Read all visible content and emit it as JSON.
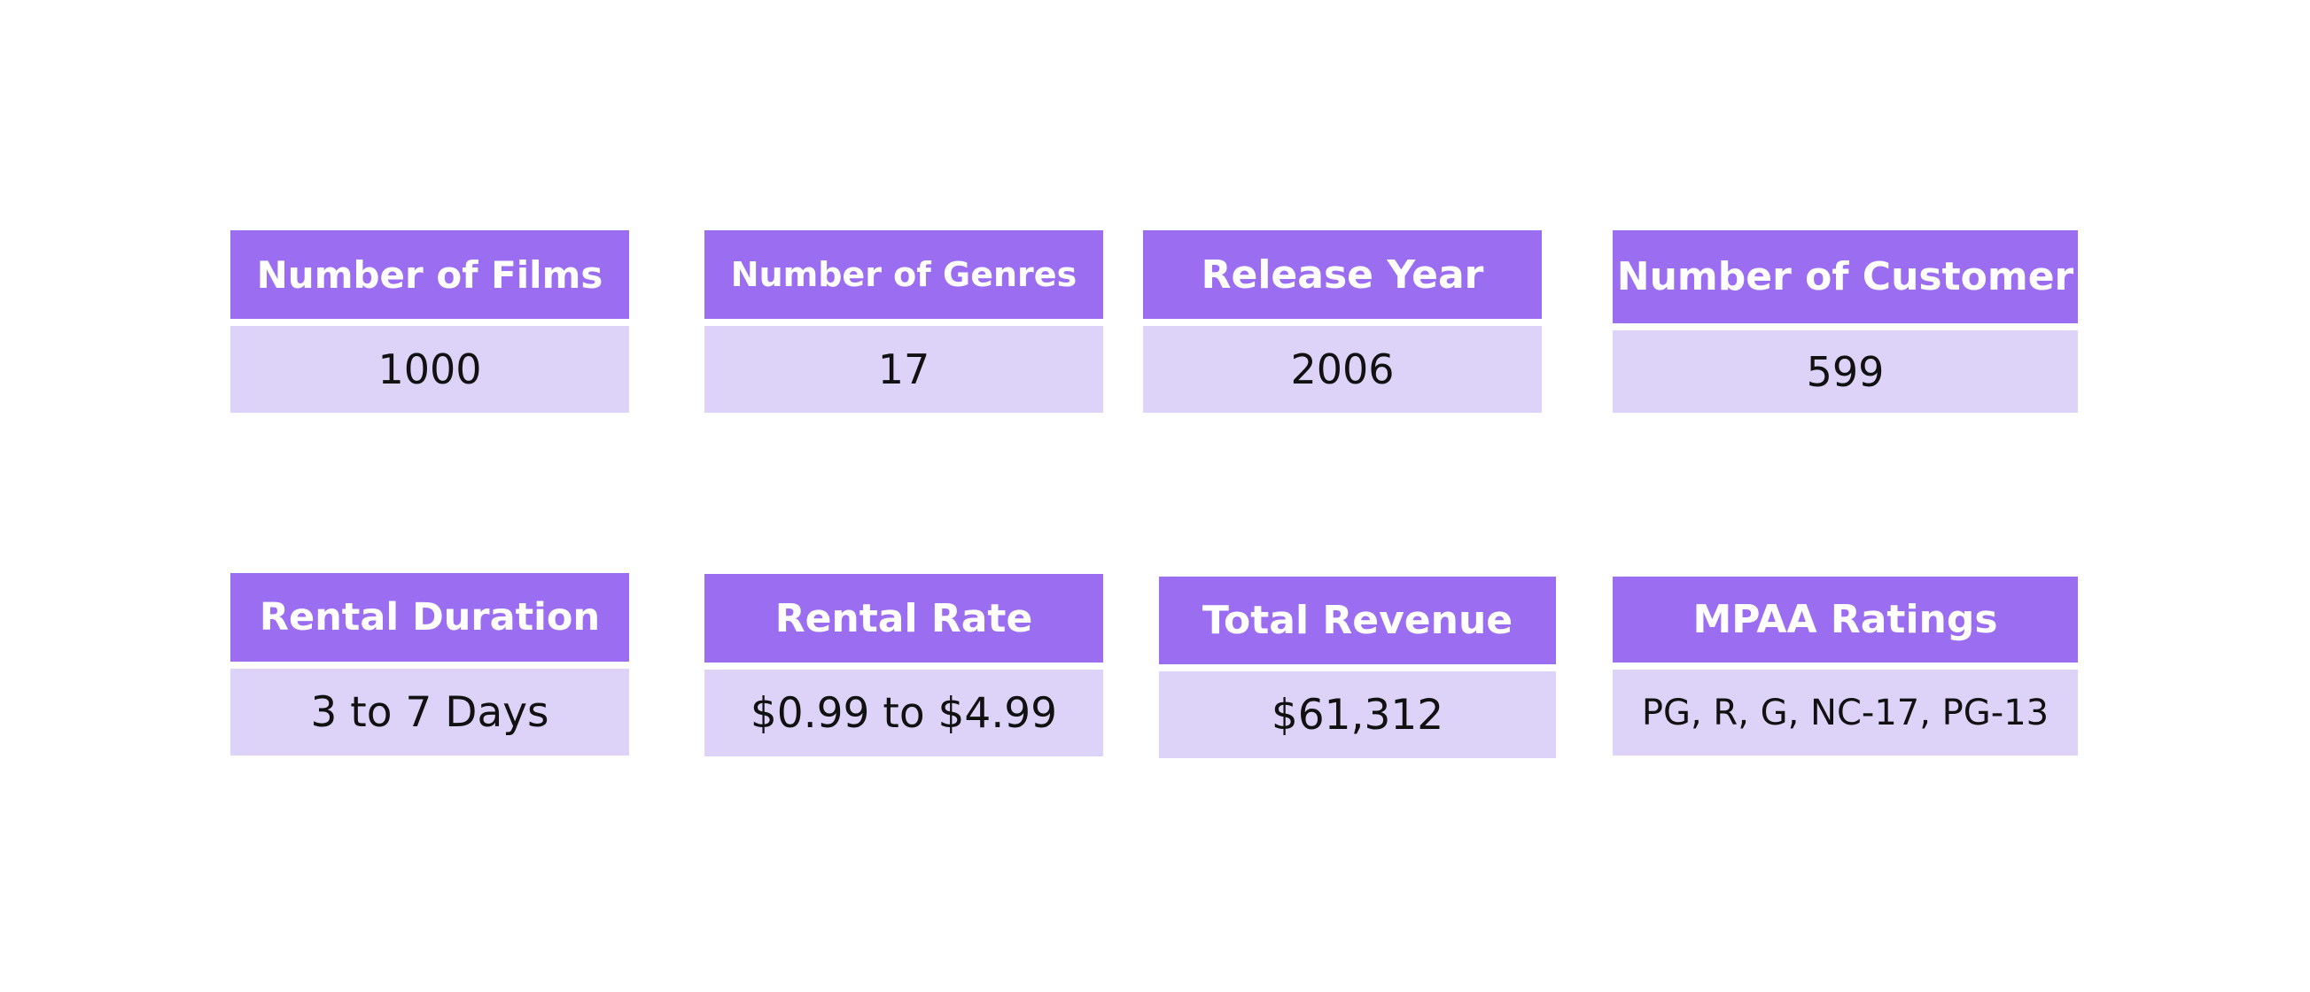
{
  "colors": {
    "header_background": "#9b6df0",
    "value_background": "#ddd3f9",
    "header_text": "#ffffff",
    "value_text": "#111111"
  },
  "cards": [
    {
      "title": "Number of Films",
      "value": "1000"
    },
    {
      "title": "Number of Genres",
      "value": "17"
    },
    {
      "title": "Release Year",
      "value": "2006"
    },
    {
      "title": "Number of Customer",
      "value": "599"
    },
    {
      "title": "Rental Duration",
      "value": "3 to 7 Days"
    },
    {
      "title": "Rental Rate",
      "value": "$0.99 to $4.99"
    },
    {
      "title": "Total Revenue",
      "value": "$61,312"
    },
    {
      "title": "MPAA Ratings",
      "value": "PG, R, G, NC-17, PG-13"
    }
  ]
}
